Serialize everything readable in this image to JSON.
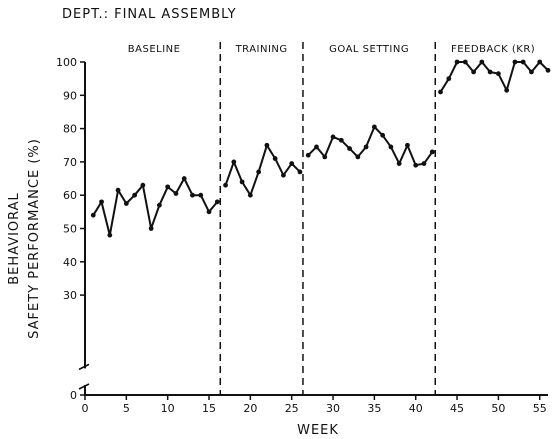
{
  "chart_data": {
    "type": "line",
    "title": "DEPT.: FINAL ASSEMBLY",
    "xlabel": "WEEK",
    "ylabel_lines": [
      "BEHAVIORAL",
      "SAFETY  PERFORMANCE  (%)"
    ],
    "xlim": [
      0,
      56
    ],
    "ylim": [
      0,
      100
    ],
    "y_axis_break": true,
    "grid": false,
    "x_ticks": [
      0,
      5,
      10,
      15,
      20,
      25,
      30,
      35,
      40,
      45,
      50,
      55
    ],
    "y_ticks": [
      0,
      30,
      40,
      50,
      60,
      70,
      80,
      90,
      100
    ],
    "phases": [
      {
        "label": "BASELINE",
        "start": 0,
        "end": 16
      },
      {
        "label": "TRAINING",
        "start": 16,
        "end": 26
      },
      {
        "label": "GOAL SETTING",
        "start": 26,
        "end": 42
      },
      {
        "label": "FEEDBACK (KR)",
        "start": 42,
        "end": 56
      }
    ],
    "phase_boundaries": [
      16,
      26,
      42
    ],
    "series": [
      {
        "points": [
          [
            1,
            54
          ],
          [
            2,
            58
          ],
          [
            3,
            48
          ],
          [
            4,
            61.5
          ],
          [
            5,
            57.5
          ],
          [
            6,
            60
          ],
          [
            7,
            63
          ],
          [
            8,
            50
          ],
          [
            9,
            57
          ],
          [
            10,
            62.5
          ],
          [
            11,
            60.5
          ],
          [
            12,
            65
          ],
          [
            13,
            60
          ],
          [
            14,
            60
          ],
          [
            15,
            55
          ],
          [
            16,
            58
          ]
        ]
      },
      {
        "points": [
          [
            17,
            63
          ],
          [
            18,
            70
          ],
          [
            19,
            64
          ],
          [
            20,
            60
          ],
          [
            21,
            67
          ],
          [
            22,
            75
          ],
          [
            23,
            71
          ],
          [
            24,
            66
          ],
          [
            25,
            69.5
          ],
          [
            26,
            67
          ]
        ]
      },
      {
        "points": [
          [
            27,
            72
          ],
          [
            28,
            74.5
          ],
          [
            29,
            71.5
          ],
          [
            30,
            77.5
          ],
          [
            31,
            76.5
          ],
          [
            32,
            74
          ],
          [
            33,
            71.5
          ],
          [
            34,
            74.5
          ],
          [
            35,
            80.5
          ],
          [
            36,
            78
          ],
          [
            37,
            74.5
          ],
          [
            38,
            69.5
          ],
          [
            39,
            75
          ],
          [
            40,
            69
          ],
          [
            41,
            69.5
          ],
          [
            42,
            73
          ]
        ]
      },
      {
        "points": [
          [
            43,
            91
          ],
          [
            44,
            95
          ],
          [
            45,
            100
          ],
          [
            46,
            100
          ],
          [
            47,
            97
          ],
          [
            48,
            100
          ],
          [
            49,
            97
          ],
          [
            50,
            96.5
          ],
          [
            51,
            91.5
          ],
          [
            52,
            100
          ],
          [
            53,
            100
          ],
          [
            54,
            97
          ],
          [
            55,
            100
          ],
          [
            56,
            97.5
          ]
        ]
      }
    ]
  }
}
